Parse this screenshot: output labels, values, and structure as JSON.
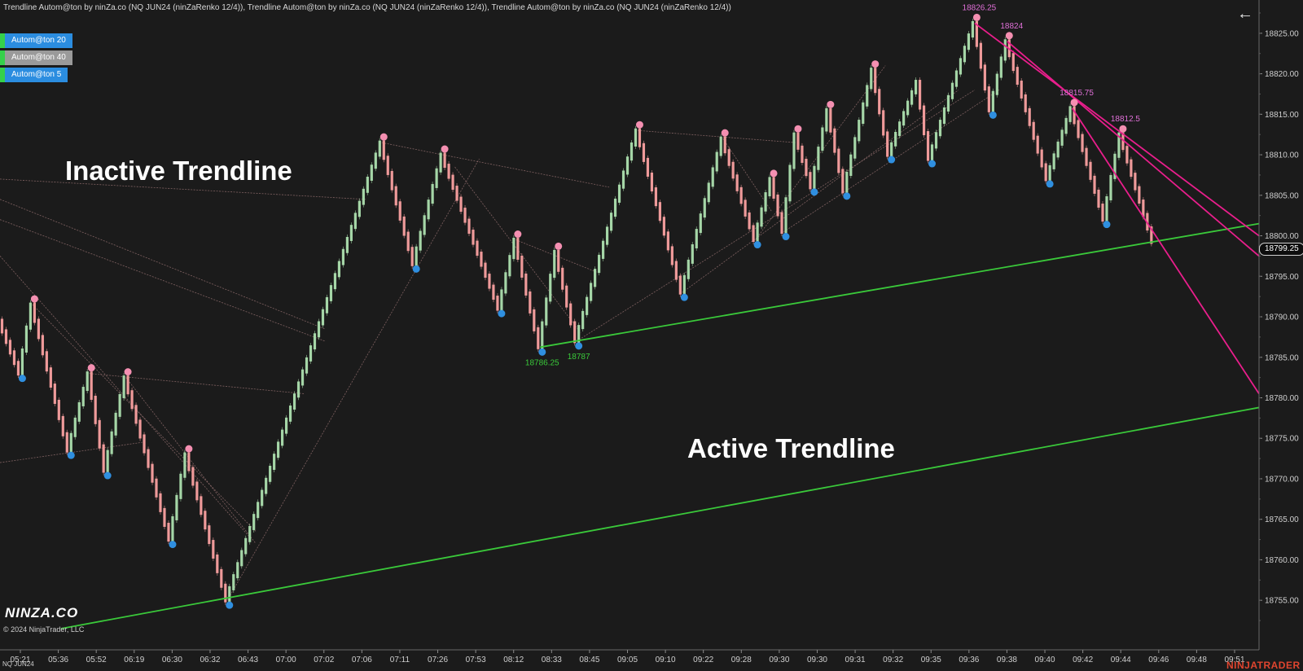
{
  "header": {
    "title": "Trendline Autom@ton by ninZa.co (NQ JUN24 (ninZaRenko 12/4)), Trendline Autom@ton by ninZa.co (NQ JUN24 (ninZaRenko 12/4)), Trendline Autom@ton by ninZa.co (NQ JUN24 (ninZaRenko 12/4))"
  },
  "toggles": [
    {
      "label": "Autom@ton 20",
      "color": "#2b8de0"
    },
    {
      "label": "Autom@ton 40",
      "color": "#9a9a9a"
    },
    {
      "label": "Autom@ton 5",
      "color": "#2b8de0"
    }
  ],
  "annotations": {
    "inactive": "Inactive Trendline",
    "active": "Active Trendline"
  },
  "footer": {
    "instrument": "NQ JUN24",
    "brand": "NINZA.CO",
    "copyright": "© 2024 NinjaTrader, LLC",
    "platform": "NINJATRADER"
  },
  "current_price": "18799.25",
  "chart_data": {
    "type": "renko",
    "instrument": "NQ JUN24",
    "y_ticks": [
      "18755.00",
      "18760.00",
      "18765.00",
      "18770.00",
      "18775.00",
      "18780.00",
      "18785.00",
      "18790.00",
      "18795.00",
      "18800.00",
      "18805.00",
      "18810.00",
      "18815.00",
      "18820.00",
      "18825.00"
    ],
    "ylim": [
      18751.5,
      18828.0
    ],
    "x_ticks": [
      "05:21",
      "05:36",
      "05:52",
      "06:19",
      "06:30",
      "06:32",
      "06:43",
      "07:00",
      "07:02",
      "07:06",
      "07:11",
      "07:26",
      "07:53",
      "08:12",
      "08:33",
      "08:45",
      "09:05",
      "09:10",
      "09:22",
      "09:28",
      "09:30",
      "09:30",
      "09:31",
      "09:32",
      "09:35",
      "09:36",
      "09:38",
      "09:40",
      "09:42",
      "09:44",
      "09:46",
      "09:48",
      "09:51"
    ],
    "bar_count": 310,
    "colors": {
      "up": "#a5d6a7",
      "down": "#ef9a9a",
      "swing_high": "#f48fb1",
      "swing_low": "#2f8fe0",
      "active_support": "#3ac93a",
      "active_resistance": "#e91e8c",
      "inactive": "#a07878"
    },
    "swings": [
      {
        "bar": 0,
        "price": 18789.5
      },
      {
        "bar": 5,
        "price": 18783
      },
      {
        "bar": 8,
        "price": 18791.5
      },
      {
        "bar": 17,
        "price": 18773.5
      },
      {
        "bar": 22,
        "price": 18783
      },
      {
        "bar": 26,
        "price": 18771
      },
      {
        "bar": 31,
        "price": 18782.5
      },
      {
        "bar": 42,
        "price": 18762.5
      },
      {
        "bar": 46,
        "price": 18773
      },
      {
        "bar": 56,
        "price": 18755
      },
      {
        "bar": 94,
        "price": 18811.5
      },
      {
        "bar": 102,
        "price": 18796.5
      },
      {
        "bar": 109,
        "price": 18810
      },
      {
        "bar": 123,
        "price": 18791
      },
      {
        "bar": 127,
        "price": 18799.5
      },
      {
        "bar": 133,
        "price": 18786.25
      },
      {
        "bar": 137,
        "price": 18798
      },
      {
        "bar": 142,
        "price": 18787
      },
      {
        "bar": 157,
        "price": 18813
      },
      {
        "bar": 168,
        "price": 18793
      },
      {
        "bar": 178,
        "price": 18812
      },
      {
        "bar": 186,
        "price": 18799.5
      },
      {
        "bar": 190,
        "price": 18807
      },
      {
        "bar": 193,
        "price": 18800.5
      },
      {
        "bar": 196,
        "price": 18812.5
      },
      {
        "bar": 200,
        "price": 18806
      },
      {
        "bar": 204,
        "price": 18815.5
      },
      {
        "bar": 208,
        "price": 18805.5
      },
      {
        "bar": 215,
        "price": 18820.5
      },
      {
        "bar": 219,
        "price": 18810
      },
      {
        "bar": 226,
        "price": 18819
      },
      {
        "bar": 229,
        "price": 18809.5
      },
      {
        "bar": 240,
        "price": 18826.25
      },
      {
        "bar": 244,
        "price": 18815.5
      },
      {
        "bar": 248,
        "price": 18824
      },
      {
        "bar": 258,
        "price": 18807
      },
      {
        "bar": 264,
        "price": 18815.75
      },
      {
        "bar": 272,
        "price": 18802
      },
      {
        "bar": 276,
        "price": 18812.5
      },
      {
        "bar": 284,
        "price": 18799.25
      }
    ],
    "swing_highs": [
      {
        "bar": 8,
        "price": 18791.5
      },
      {
        "bar": 22,
        "price": 18783
      },
      {
        "bar": 31,
        "price": 18782.5
      },
      {
        "bar": 46,
        "price": 18773
      },
      {
        "bar": 94,
        "price": 18811.5
      },
      {
        "bar": 109,
        "price": 18810
      },
      {
        "bar": 127,
        "price": 18799.5
      },
      {
        "bar": 137,
        "price": 18798
      },
      {
        "bar": 157,
        "price": 18813
      },
      {
        "bar": 178,
        "price": 18812
      },
      {
        "bar": 190,
        "price": 18807
      },
      {
        "bar": 196,
        "price": 18812.5
      },
      {
        "bar": 204,
        "price": 18815.5
      },
      {
        "bar": 215,
        "price": 18820.5
      },
      {
        "bar": 240,
        "price": 18826.25,
        "label": "18826.25"
      },
      {
        "bar": 248,
        "price": 18824,
        "label": "18824"
      },
      {
        "bar": 264,
        "price": 18815.75,
        "label": "18815.75"
      },
      {
        "bar": 276,
        "price": 18812.5,
        "label": "18812.5"
      }
    ],
    "swing_lows": [
      {
        "bar": 5,
        "price": 18783
      },
      {
        "bar": 17,
        "price": 18773.5
      },
      {
        "bar": 26,
        "price": 18771
      },
      {
        "bar": 42,
        "price": 18762.5
      },
      {
        "bar": 56,
        "price": 18755
      },
      {
        "bar": 102,
        "price": 18796.5
      },
      {
        "bar": 123,
        "price": 18791
      },
      {
        "bar": 133,
        "price": 18786.25,
        "label": "18786.25"
      },
      {
        "bar": 142,
        "price": 18787,
        "label": "18787"
      },
      {
        "bar": 168,
        "price": 18793
      },
      {
        "bar": 186,
        "price": 18799.5
      },
      {
        "bar": 193,
        "price": 18800.5
      },
      {
        "bar": 200,
        "price": 18806
      },
      {
        "bar": 208,
        "price": 18805.5
      },
      {
        "bar": 219,
        "price": 18810
      },
      {
        "bar": 229,
        "price": 18809.5
      },
      {
        "bar": 244,
        "price": 18815.5
      },
      {
        "bar": 258,
        "price": 18807
      },
      {
        "bar": 272,
        "price": 18802
      }
    ],
    "active_trendlines": [
      {
        "kind": "support",
        "from": {
          "bar": 15,
          "price": 18751.5
        },
        "to": {
          "bar": 310,
          "price": 18778.8
        }
      },
      {
        "kind": "support",
        "from": {
          "bar": 133,
          "price": 18786.25
        },
        "to": {
          "bar": 310,
          "price": 18801.5
        }
      },
      {
        "kind": "resistance",
        "from": {
          "bar": 240,
          "price": 18826.25
        },
        "to": {
          "bar": 310,
          "price": 18800
        }
      },
      {
        "kind": "resistance",
        "from": {
          "bar": 248,
          "price": 18824
        },
        "to": {
          "bar": 310,
          "price": 18797.5
        }
      },
      {
        "kind": "resistance",
        "from": {
          "bar": 264,
          "price": 18815.75
        },
        "to": {
          "bar": 310,
          "price": 18780.5
        }
      }
    ],
    "inactive_trendlines": [
      {
        "from": {
          "bar": 0,
          "price": 18807
        },
        "to": {
          "bar": 90,
          "price": 18804.5
        }
      },
      {
        "from": {
          "bar": 0,
          "price": 18804.5
        },
        "to": {
          "bar": 80,
          "price": 18788.5
        }
      },
      {
        "from": {
          "bar": 0,
          "price": 18802
        },
        "to": {
          "bar": 80,
          "price": 18787
        }
      },
      {
        "from": {
          "bar": 0,
          "price": 18797.5
        },
        "to": {
          "bar": 62,
          "price": 18762.5
        }
      },
      {
        "from": {
          "bar": 8,
          "price": 18791.5
        },
        "to": {
          "bar": 63,
          "price": 18763.5
        }
      },
      {
        "from": {
          "bar": 22,
          "price": 18783
        },
        "to": {
          "bar": 75,
          "price": 18780.5
        }
      },
      {
        "from": {
          "bar": 31,
          "price": 18782.5
        },
        "to": {
          "bar": 63,
          "price": 18762
        }
      },
      {
        "from": {
          "bar": 94,
          "price": 18811.5
        },
        "to": {
          "bar": 109,
          "price": 18810
        }
      },
      {
        "from": {
          "bar": 109,
          "price": 18810
        },
        "to": {
          "bar": 150,
          "price": 18806
        }
      },
      {
        "from": {
          "bar": 112,
          "price": 18808.5
        },
        "to": {
          "bar": 143,
          "price": 18788
        }
      },
      {
        "from": {
          "bar": 127,
          "price": 18799.5
        },
        "to": {
          "bar": 147,
          "price": 18795.5
        }
      },
      {
        "from": {
          "bar": 157,
          "price": 18813
        },
        "to": {
          "bar": 196,
          "price": 18811.5
        }
      },
      {
        "from": {
          "bar": 178,
          "price": 18812
        },
        "to": {
          "bar": 190,
          "price": 18803
        }
      },
      {
        "from": {
          "bar": 0,
          "price": 18772
        },
        "to": {
          "bar": 35,
          "price": 18774.5
        }
      },
      {
        "from": {
          "bar": 56,
          "price": 18755
        },
        "to": {
          "bar": 118,
          "price": 18809.5
        }
      },
      {
        "from": {
          "bar": 142,
          "price": 18787
        },
        "to": {
          "bar": 240,
          "price": 18818
        }
      },
      {
        "from": {
          "bar": 168,
          "price": 18793
        },
        "to": {
          "bar": 236,
          "price": 18818
        }
      },
      {
        "from": {
          "bar": 186,
          "price": 18799.5
        },
        "to": {
          "bar": 218,
          "price": 18821
        }
      },
      {
        "from": {
          "bar": 193,
          "price": 18800.5
        },
        "to": {
          "bar": 246,
          "price": 18818
        }
      }
    ]
  }
}
